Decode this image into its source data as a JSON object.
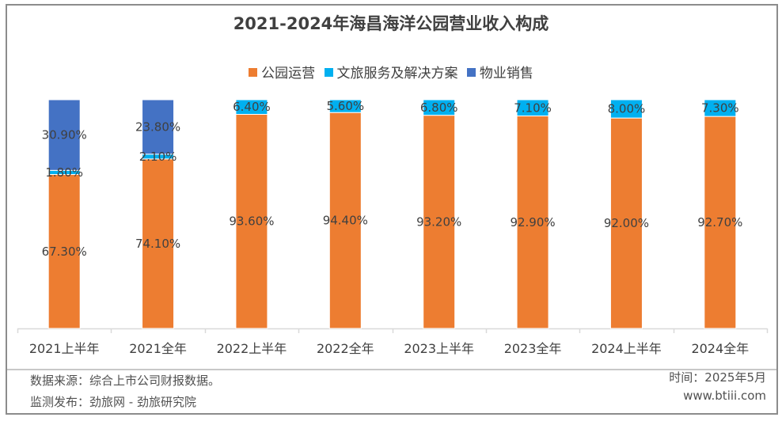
{
  "chart_data": {
    "type": "bar",
    "stacked": true,
    "title": "2021-2024年海昌海洋公园营业收入构成",
    "xlabel": "",
    "ylabel": "",
    "ylim": [
      0,
      100
    ],
    "legend_position": "top",
    "categories": [
      "2021上半年",
      "2021全年",
      "2022上半年",
      "2022全年",
      "2023上半年",
      "2023全年",
      "2024上半年",
      "2024全年"
    ],
    "series": [
      {
        "name": "公园运营",
        "color": "#ED7D31",
        "values": [
          67.3,
          74.1,
          93.6,
          94.4,
          93.2,
          92.9,
          92.0,
          92.7
        ],
        "labels": [
          "67.30%",
          "74.10%",
          "93.60%",
          "94.40%",
          "93.20%",
          "92.90%",
          "92.00%",
          "92.70%"
        ]
      },
      {
        "name": "文旅服务及解决方案",
        "color": "#00B0F0",
        "values": [
          1.8,
          2.1,
          6.4,
          5.6,
          6.8,
          7.1,
          8.0,
          7.3
        ],
        "labels": [
          "1.80%",
          "2.10%",
          "6.40%",
          "5.60%",
          "6.80%",
          "7.10%",
          "8.00%",
          "7.30%"
        ]
      },
      {
        "name": "物业销售",
        "color": "#4472C4",
        "values": [
          30.9,
          23.8,
          null,
          null,
          null,
          null,
          null,
          null
        ],
        "labels": [
          "30.90%",
          "23.80%",
          null,
          null,
          null,
          null,
          null,
          null
        ]
      }
    ]
  },
  "footer": {
    "source": "数据来源：综合上市公司财报数据。",
    "publisher": "监测发布：劲旅网 - 劲旅研究院",
    "date": "时间：2025年5月",
    "website": "www.btiii.com"
  }
}
